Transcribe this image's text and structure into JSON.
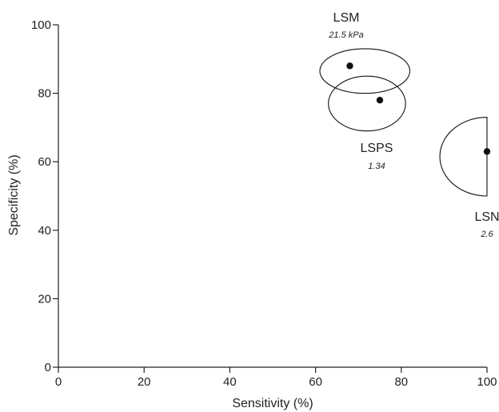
{
  "chart_data": {
    "type": "scatter",
    "title": "",
    "xlabel": "Sensitivity (%)",
    "ylabel": "Specificity (%)",
    "xlim": [
      0,
      100
    ],
    "ylim": [
      0,
      100
    ],
    "x_ticks": [
      0,
      20,
      40,
      60,
      80,
      100
    ],
    "y_ticks": [
      0,
      20,
      40,
      60,
      80,
      100
    ],
    "grid": false,
    "points": [
      {
        "name": "LSM",
        "cutoff": "21.5 kPa",
        "sensitivity": 68,
        "specificity": 88,
        "confidence_region": {
          "shape": "ellipse",
          "sensitivity_range": [
            61,
            82
          ],
          "specificity_range": [
            80,
            93
          ]
        }
      },
      {
        "name": "LSPS",
        "cutoff": "1.34",
        "sensitivity": 75,
        "specificity": 78,
        "confidence_region": {
          "shape": "ellipse",
          "sensitivity_range": [
            63,
            81
          ],
          "specificity_range": [
            69,
            85
          ]
        }
      },
      {
        "name": "LSN",
        "cutoff": "2.6",
        "sensitivity": 100,
        "specificity": 63,
        "confidence_region": {
          "shape": "half-ellipse",
          "sensitivity_range": [
            89,
            100
          ],
          "specificity_range": [
            50,
            73
          ]
        }
      }
    ],
    "colors": {
      "axis": "#222222",
      "marker": "#111111",
      "region": "#111111"
    }
  }
}
